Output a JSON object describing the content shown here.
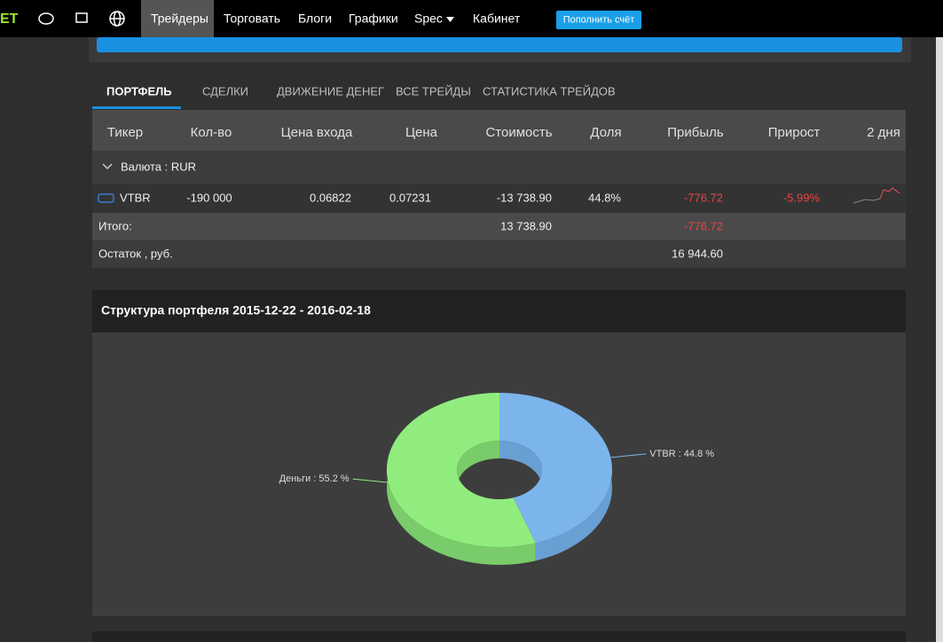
{
  "nav": {
    "logo": "ET",
    "items": [
      "Трейдеры",
      "Торговать",
      "Блоги",
      "Графики",
      "Spec",
      "Кабинет"
    ],
    "button": "Пополнить счёт"
  },
  "tabs": [
    "ПОРТФЕЛЬ",
    "СДЕЛКИ",
    "ДВИЖЕНИЕ ДЕНЕГ",
    "ВСЕ ТРЕЙДЫ",
    "СТАТИСТИКА ТРЕЙДОВ"
  ],
  "table": {
    "header": [
      "Тикер",
      "Кол-во",
      "Цена входа",
      "Цена",
      "Стоимость",
      "Доля",
      "Прибыль",
      "Прирост",
      "2 дня"
    ],
    "group": "Валюта : RUR",
    "rows": [
      [
        "VTBR",
        "-190 000",
        "0.06822",
        "0.07231",
        "-13 738.90",
        "44.8%",
        "-776.72",
        "-5.99%"
      ]
    ],
    "total": {
      "label": "Итого:",
      "value": "13 738.90",
      "profit": "-776.72"
    },
    "balance": {
      "label": "Остаток , руб.",
      "value": "16 944.60"
    }
  },
  "pie": {
    "type": "pie",
    "title": "Структура портфеля 2015-12-22 - 2016-02-18",
    "values": [
      44.8,
      55.2
    ],
    "value_labels": [
      "VTBR : 44.8 %",
      "Деньги : 55.2 %"
    ],
    "colors": [
      "#7cb5ec",
      "#90ed7d"
    ],
    "side_colors": [
      "#6a9fd4",
      "#7acb6a"
    ]
  }
}
